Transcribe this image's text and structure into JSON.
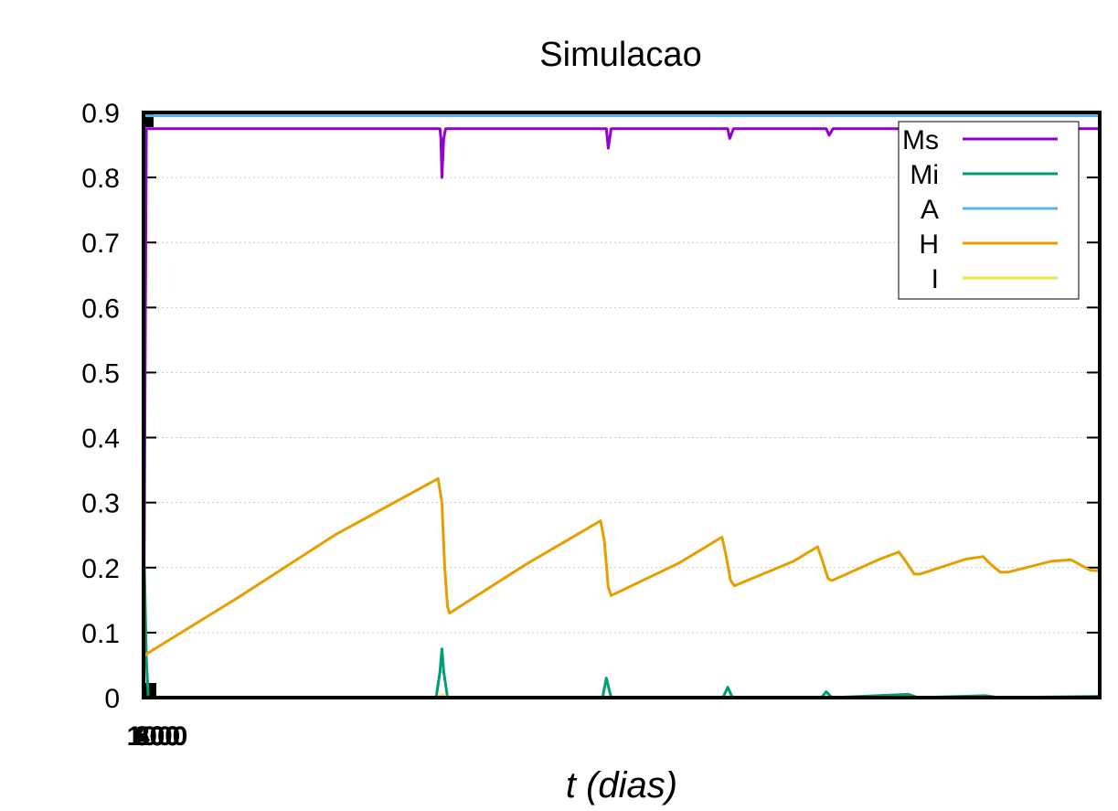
{
  "chart_data": {
    "type": "line",
    "title": "Simulacao",
    "xlabel": "t (dias)",
    "ylabel": "",
    "xlim": [
      0,
      1000
    ],
    "ylim": [
      0,
      0.9
    ],
    "yticks": [
      "0",
      "0.1",
      "0.2",
      "0.3",
      "0.4",
      "0.5",
      "0.6",
      "0.7",
      "0.8",
      "0.9"
    ],
    "xticks_overlapped": [
      "0",
      "200",
      "400",
      "600",
      "800",
      "1000"
    ],
    "grid": true,
    "legend_position": "top-right",
    "series": [
      {
        "name": "Ms",
        "color": "#9400d3",
        "points": [
          [
            0,
            0
          ],
          [
            3,
            0.875
          ],
          [
            310,
            0.875
          ],
          [
            311,
            0.86
          ],
          [
            312,
            0.8
          ],
          [
            314,
            0.86
          ],
          [
            316,
            0.875
          ],
          [
            484,
            0.875
          ],
          [
            486,
            0.845
          ],
          [
            489,
            0.875
          ],
          [
            611,
            0.875
          ],
          [
            613,
            0.86
          ],
          [
            617,
            0.875
          ],
          [
            714,
            0.875
          ],
          [
            717,
            0.865
          ],
          [
            721,
            0.875
          ],
          [
            800,
            0.875
          ],
          [
            1000,
            0.875
          ]
        ]
      },
      {
        "name": "Mi",
        "color": "#009e73",
        "points": [
          [
            0,
            0.2
          ],
          [
            1,
            0.2
          ],
          [
            3,
            0.06
          ],
          [
            5,
            0.0
          ],
          [
            306,
            0.0
          ],
          [
            310,
            0.04
          ],
          [
            312,
            0.075
          ],
          [
            314,
            0.04
          ],
          [
            318,
            0.0
          ],
          [
            480,
            0.0
          ],
          [
            484,
            0.03
          ],
          [
            489,
            0.0
          ],
          [
            606,
            0.0
          ],
          [
            611,
            0.016
          ],
          [
            616,
            0.0
          ],
          [
            709,
            0.0
          ],
          [
            714,
            0.009
          ],
          [
            720,
            0.0
          ],
          [
            800,
            0.005
          ],
          [
            810,
            0.0
          ],
          [
            880,
            0.003
          ],
          [
            895,
            0.0
          ],
          [
            1000,
            0.002
          ]
        ]
      },
      {
        "name": "A",
        "color": "#56b4e9",
        "points": [
          [
            0,
            0.895
          ],
          [
            1000,
            0.895
          ]
        ]
      },
      {
        "name": "H",
        "color": "#e69f00",
        "points": [
          [
            0,
            0.07
          ],
          [
            2,
            0.065
          ],
          [
            4,
            0.068
          ],
          [
            100,
            0.155
          ],
          [
            200,
            0.25
          ],
          [
            308,
            0.337
          ],
          [
            312,
            0.3
          ],
          [
            315,
            0.2
          ],
          [
            318,
            0.14
          ],
          [
            320,
            0.13
          ],
          [
            400,
            0.205
          ],
          [
            478,
            0.272
          ],
          [
            482,
            0.24
          ],
          [
            486,
            0.17
          ],
          [
            489,
            0.157
          ],
          [
            560,
            0.207
          ],
          [
            605,
            0.247
          ],
          [
            609,
            0.22
          ],
          [
            614,
            0.18
          ],
          [
            618,
            0.172
          ],
          [
            680,
            0.21
          ],
          [
            705,
            0.232
          ],
          [
            709,
            0.215
          ],
          [
            716,
            0.183
          ],
          [
            720,
            0.18
          ],
          [
            770,
            0.213
          ],
          [
            790,
            0.224
          ],
          [
            796,
            0.212
          ],
          [
            806,
            0.19
          ],
          [
            812,
            0.19
          ],
          [
            860,
            0.213
          ],
          [
            878,
            0.217
          ],
          [
            886,
            0.205
          ],
          [
            896,
            0.193
          ],
          [
            904,
            0.193
          ],
          [
            950,
            0.21
          ],
          [
            970,
            0.212
          ],
          [
            980,
            0.204
          ],
          [
            990,
            0.196
          ],
          [
            1000,
            0.195
          ]
        ]
      },
      {
        "name": "I",
        "color": "#f0e442",
        "points": [
          [
            0,
            0
          ],
          [
            306,
            0.0
          ],
          [
            312,
            0.004
          ],
          [
            318,
            0.0
          ],
          [
            1000,
            0.0
          ]
        ]
      }
    ]
  }
}
